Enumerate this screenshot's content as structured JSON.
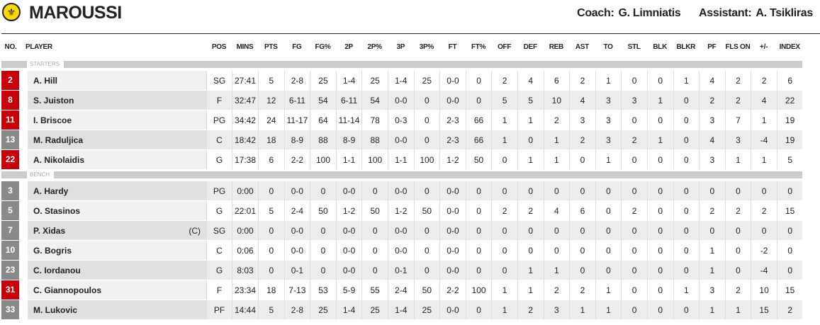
{
  "team": {
    "name": "MAROUSSI",
    "logo": "maroussi-crest",
    "coach_label": "Coach:",
    "coach": "G. Limniatis",
    "assistant_label": "Assistant:",
    "assistant": "A. Tsikliras"
  },
  "columns": [
    "NO.",
    "PLAYER",
    "POS",
    "MINS",
    "PTS",
    "FG",
    "FG%",
    "2P",
    "2P%",
    "3P",
    "3P%",
    "FT",
    "FT%",
    "OFF",
    "DEF",
    "REB",
    "AST",
    "TO",
    "STL",
    "BLK",
    "BLKR",
    "PF",
    "FLS ON",
    "+/-",
    "INDEX"
  ],
  "colors": {
    "starter_badge": "#c8000a",
    "bench_badge": "#8a8a8a"
  },
  "sections": [
    {
      "label": "STARTERS",
      "players": [
        {
          "no": "2",
          "badge": "red",
          "name": "A. Hill",
          "cap": "",
          "stats": [
            "SG",
            "27:41",
            "5",
            "2-8",
            "25",
            "1-4",
            "25",
            "1-4",
            "25",
            "0-0",
            "0",
            "2",
            "4",
            "6",
            "2",
            "1",
            "0",
            "0",
            "1",
            "4",
            "2",
            "2",
            "6"
          ]
        },
        {
          "no": "8",
          "badge": "red",
          "name": "S. Juiston",
          "cap": "",
          "stats": [
            "F",
            "32:47",
            "12",
            "6-11",
            "54",
            "6-11",
            "54",
            "0-0",
            "0",
            "0-0",
            "0",
            "5",
            "5",
            "10",
            "4",
            "3",
            "3",
            "1",
            "0",
            "2",
            "2",
            "4",
            "22"
          ]
        },
        {
          "no": "11",
          "badge": "red",
          "name": "I. Briscoe",
          "cap": "",
          "stats": [
            "PG",
            "34:42",
            "24",
            "11-17",
            "64",
            "11-14",
            "78",
            "0-3",
            "0",
            "2-3",
            "66",
            "1",
            "1",
            "2",
            "3",
            "3",
            "0",
            "0",
            "0",
            "3",
            "7",
            "1",
            "19"
          ]
        },
        {
          "no": "13",
          "badge": "grey",
          "name": "M. Raduljica",
          "cap": "",
          "stats": [
            "C",
            "18:42",
            "18",
            "8-9",
            "88",
            "8-9",
            "88",
            "0-0",
            "0",
            "2-3",
            "66",
            "1",
            "0",
            "1",
            "2",
            "3",
            "2",
            "1",
            "0",
            "4",
            "3",
            "-4",
            "19"
          ]
        },
        {
          "no": "22",
          "badge": "red",
          "name": "A. Nikolaidis",
          "cap": "",
          "stats": [
            "G",
            "17:38",
            "6",
            "2-2",
            "100",
            "1-1",
            "100",
            "1-1",
            "100",
            "1-2",
            "50",
            "0",
            "1",
            "1",
            "0",
            "1",
            "0",
            "0",
            "0",
            "3",
            "1",
            "1",
            "5"
          ]
        }
      ]
    },
    {
      "label": "BENCH",
      "players": [
        {
          "no": "3",
          "badge": "grey",
          "name": "A. Hardy",
          "cap": "",
          "stats": [
            "PG",
            "0:00",
            "0",
            "0-0",
            "0",
            "0-0",
            "0",
            "0-0",
            "0",
            "0-0",
            "0",
            "0",
            "0",
            "0",
            "0",
            "0",
            "0",
            "0",
            "0",
            "0",
            "0",
            "0",
            "0"
          ]
        },
        {
          "no": "5",
          "badge": "grey",
          "name": "O. Stasinos",
          "cap": "",
          "stats": [
            "G",
            "22:01",
            "5",
            "2-4",
            "50",
            "1-2",
            "50",
            "1-2",
            "50",
            "0-0",
            "0",
            "2",
            "2",
            "4",
            "6",
            "0",
            "2",
            "0",
            "0",
            "2",
            "2",
            "2",
            "15"
          ]
        },
        {
          "no": "7",
          "badge": "grey",
          "name": "P. Xidas",
          "cap": "(C)",
          "stats": [
            "SG",
            "0:00",
            "0",
            "0-0",
            "0",
            "0-0",
            "0",
            "0-0",
            "0",
            "0-0",
            "0",
            "0",
            "0",
            "0",
            "0",
            "0",
            "0",
            "0",
            "0",
            "0",
            "0",
            "0",
            "0"
          ]
        },
        {
          "no": "10",
          "badge": "grey",
          "name": "G. Bogris",
          "cap": "",
          "stats": [
            "C",
            "0:06",
            "0",
            "0-0",
            "0",
            "0-0",
            "0",
            "0-0",
            "0",
            "0-0",
            "0",
            "0",
            "0",
            "0",
            "0",
            "0",
            "0",
            "0",
            "0",
            "1",
            "0",
            "-2",
            "0"
          ]
        },
        {
          "no": "23",
          "badge": "grey",
          "name": "C. Iordanou",
          "cap": "",
          "stats": [
            "G",
            "8:03",
            "0",
            "0-1",
            "0",
            "0-0",
            "0",
            "0-1",
            "0",
            "0-0",
            "0",
            "0",
            "1",
            "1",
            "0",
            "0",
            "0",
            "0",
            "0",
            "1",
            "0",
            "-4",
            "0"
          ]
        },
        {
          "no": "31",
          "badge": "red",
          "name": "C. Giannopoulos",
          "cap": "",
          "stats": [
            "F",
            "23:34",
            "18",
            "7-13",
            "53",
            "5-9",
            "55",
            "2-4",
            "50",
            "2-2",
            "100",
            "1",
            "1",
            "2",
            "2",
            "1",
            "0",
            "0",
            "1",
            "3",
            "2",
            "10",
            "15"
          ]
        },
        {
          "no": "33",
          "badge": "grey",
          "name": "M. Lukovic",
          "cap": "",
          "stats": [
            "PF",
            "14:44",
            "5",
            "2-8",
            "25",
            "1-4",
            "25",
            "1-4",
            "25",
            "0-0",
            "0",
            "1",
            "2",
            "3",
            "1",
            "1",
            "0",
            "0",
            "0",
            "1",
            "1",
            "15",
            "2"
          ]
        }
      ]
    }
  ]
}
